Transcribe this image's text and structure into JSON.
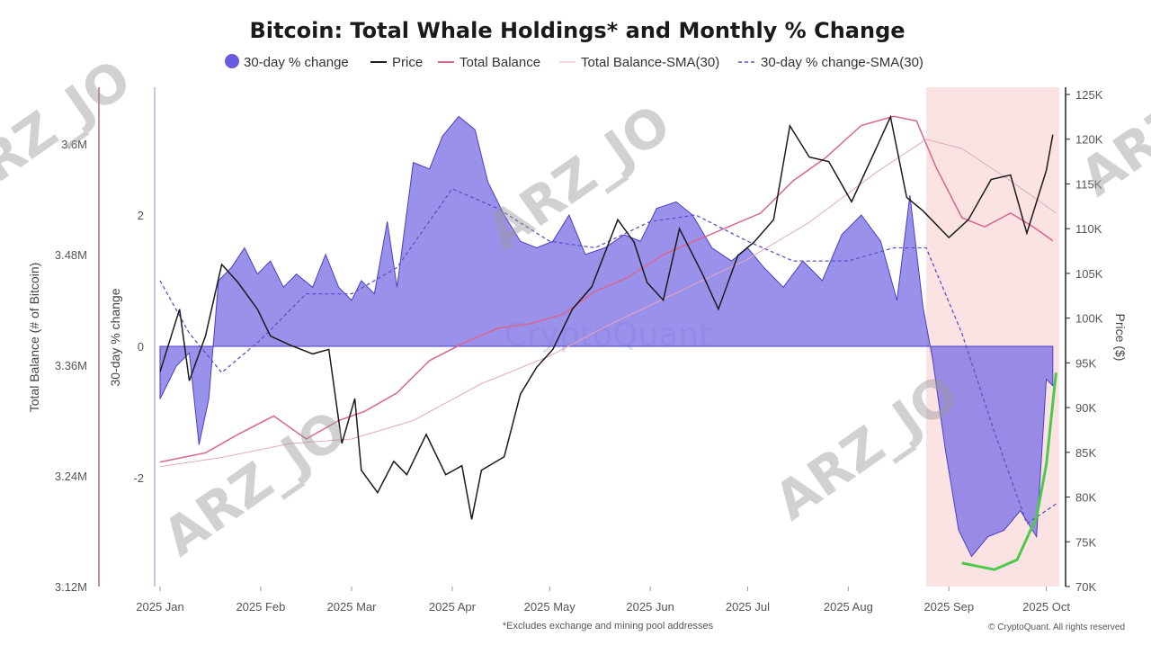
{
  "chart_data": {
    "type": "area",
    "title": "Bitcoin: Total Whale Holdings* and Monthly % Change",
    "note": "*Excludes exchange and mining pool addresses",
    "credit": "© CryptoQuant. All rights reserved",
    "watermark_center": "CryptoQuant",
    "watermark_user": "ARZ_JO",
    "legend": [
      {
        "name": "30-day % change",
        "color": "#6a5ae0",
        "style": "dot"
      },
      {
        "name": "Price",
        "color": "#1a1a1a",
        "style": "line"
      },
      {
        "name": "Total Balance",
        "color": "#d9668f",
        "style": "line"
      },
      {
        "name": "Total Balance-SMA(30)",
        "color": "#e3a9bf",
        "style": "thin"
      },
      {
        "name": "30-day % change-SMA(30)",
        "color": "#5b52c9",
        "style": "dashed"
      }
    ],
    "x_ticks": [
      "2025 Jan",
      "2025 Feb",
      "2025 Mar",
      "2025 Apr",
      "2025 May",
      "2025 Jun",
      "2025 Jul",
      "2025 Aug",
      "2025 Sep",
      "2025 Oct"
    ],
    "axes": {
      "balance": {
        "label": "Total Balance (# of Bitcoin)",
        "ticks": [
          "3.6M",
          "3.48M",
          "3.36M",
          "3.24M",
          "3.12M"
        ],
        "values": [
          3600000,
          3480000,
          3360000,
          3240000,
          3120000
        ]
      },
      "pct": {
        "label": "30-day % change",
        "ticks": [
          "2",
          "0",
          "-2"
        ],
        "values": [
          2,
          0,
          -2
        ]
      },
      "price": {
        "label": "Price ($)",
        "ticks": [
          "125K",
          "120K",
          "115K",
          "110K",
          "105K",
          "100K",
          "95K",
          "90K",
          "85K",
          "80K",
          "75K",
          "70K"
        ],
        "values": [
          125000,
          120000,
          115000,
          110000,
          105000,
          100000,
          95000,
          90000,
          85000,
          80000,
          75000,
          70000
        ]
      }
    },
    "highlight_region": {
      "from": "2025-08-25",
      "to": "2025-10-05",
      "color": "#fbe3e3"
    },
    "series": [
      {
        "name": "30-day % change",
        "unit": "%",
        "points": [
          [
            "2025-01-01",
            -0.8
          ],
          [
            "2025-01-06",
            -0.3
          ],
          [
            "2025-01-10",
            -0.1
          ],
          [
            "2025-01-13",
            -1.5
          ],
          [
            "2025-01-16",
            -0.8
          ],
          [
            "2025-01-19",
            1.0
          ],
          [
            "2025-01-23",
            1.2
          ],
          [
            "2025-01-27",
            1.5
          ],
          [
            "2025-01-31",
            1.1
          ],
          [
            "2025-02-04",
            1.3
          ],
          [
            "2025-02-08",
            0.9
          ],
          [
            "2025-02-12",
            1.1
          ],
          [
            "2025-02-17",
            0.9
          ],
          [
            "2025-02-21",
            1.4
          ],
          [
            "2025-02-25",
            0.9
          ],
          [
            "2025-03-01",
            0.7
          ],
          [
            "2025-03-04",
            1.0
          ],
          [
            "2025-03-08",
            0.8
          ],
          [
            "2025-03-12",
            1.9
          ],
          [
            "2025-03-15",
            0.9
          ],
          [
            "2025-03-20",
            2.8
          ],
          [
            "2025-03-25",
            2.7
          ],
          [
            "2025-03-29",
            3.2
          ],
          [
            "2025-04-03",
            3.5
          ],
          [
            "2025-04-08",
            3.3
          ],
          [
            "2025-04-12",
            2.5
          ],
          [
            "2025-04-17",
            2.0
          ],
          [
            "2025-04-22",
            1.6
          ],
          [
            "2025-04-27",
            1.5
          ],
          [
            "2025-05-02",
            1.6
          ],
          [
            "2025-05-07",
            2.0
          ],
          [
            "2025-05-12",
            1.4
          ],
          [
            "2025-05-18",
            1.5
          ],
          [
            "2025-05-24",
            1.7
          ],
          [
            "2025-05-29",
            1.6
          ],
          [
            "2025-06-03",
            2.1
          ],
          [
            "2025-06-09",
            2.2
          ],
          [
            "2025-06-14",
            2.0
          ],
          [
            "2025-06-20",
            1.5
          ],
          [
            "2025-06-26",
            1.3
          ],
          [
            "2025-07-01",
            1.5
          ],
          [
            "2025-07-06",
            1.2
          ],
          [
            "2025-07-12",
            0.9
          ],
          [
            "2025-07-18",
            1.3
          ],
          [
            "2025-07-24",
            1.0
          ],
          [
            "2025-07-30",
            1.7
          ],
          [
            "2025-08-05",
            2.0
          ],
          [
            "2025-08-11",
            1.6
          ],
          [
            "2025-08-16",
            0.7
          ],
          [
            "2025-08-20",
            2.3
          ],
          [
            "2025-08-24",
            0.6
          ],
          [
            "2025-08-27",
            -0.2
          ],
          [
            "2025-08-31",
            -1.6
          ],
          [
            "2025-09-04",
            -2.8
          ],
          [
            "2025-09-08",
            -3.2
          ],
          [
            "2025-09-13",
            -2.9
          ],
          [
            "2025-09-18",
            -2.8
          ],
          [
            "2025-09-23",
            -2.5
          ],
          [
            "2025-09-28",
            -2.9
          ],
          [
            "2025-10-01",
            -0.5
          ],
          [
            "2025-10-03",
            -0.6
          ]
        ]
      },
      {
        "name": "30-day % change-SMA(30)",
        "unit": "%",
        "points": [
          [
            "2025-01-01",
            1.0
          ],
          [
            "2025-01-10",
            0.2
          ],
          [
            "2025-01-20",
            -0.4
          ],
          [
            "2025-02-01",
            0.1
          ],
          [
            "2025-02-15",
            0.8
          ],
          [
            "2025-03-01",
            0.8
          ],
          [
            "2025-03-15",
            1.2
          ],
          [
            "2025-04-01",
            2.4
          ],
          [
            "2025-04-15",
            2.1
          ],
          [
            "2025-05-01",
            1.6
          ],
          [
            "2025-05-15",
            1.5
          ],
          [
            "2025-06-01",
            1.9
          ],
          [
            "2025-06-15",
            2.0
          ],
          [
            "2025-07-01",
            1.6
          ],
          [
            "2025-07-15",
            1.3
          ],
          [
            "2025-08-01",
            1.3
          ],
          [
            "2025-08-15",
            1.5
          ],
          [
            "2025-08-25",
            1.5
          ],
          [
            "2025-09-05",
            0.2
          ],
          [
            "2025-09-15",
            -1.3
          ],
          [
            "2025-09-25",
            -2.7
          ],
          [
            "2025-10-04",
            -2.4
          ]
        ]
      },
      {
        "name": "Price",
        "unit": "USD",
        "points": [
          [
            "2025-01-01",
            94000
          ],
          [
            "2025-01-07",
            101000
          ],
          [
            "2025-01-10",
            93000
          ],
          [
            "2025-01-15",
            98000
          ],
          [
            "2025-01-20",
            106000
          ],
          [
            "2025-01-25",
            104000
          ],
          [
            "2025-01-31",
            101000
          ],
          [
            "2025-02-04",
            98000
          ],
          [
            "2025-02-10",
            97000
          ],
          [
            "2025-02-17",
            96000
          ],
          [
            "2025-02-22",
            96500
          ],
          [
            "2025-02-26",
            86000
          ],
          [
            "2025-03-02",
            91000
          ],
          [
            "2025-03-04",
            83000
          ],
          [
            "2025-03-09",
            80500
          ],
          [
            "2025-03-14",
            84000
          ],
          [
            "2025-03-18",
            82500
          ],
          [
            "2025-03-24",
            87000
          ],
          [
            "2025-03-30",
            82500
          ],
          [
            "2025-04-04",
            83500
          ],
          [
            "2025-04-07",
            77500
          ],
          [
            "2025-04-10",
            83000
          ],
          [
            "2025-04-17",
            84500
          ],
          [
            "2025-04-22",
            91500
          ],
          [
            "2025-04-27",
            94500
          ],
          [
            "2025-05-02",
            96500
          ],
          [
            "2025-05-08",
            101000
          ],
          [
            "2025-05-14",
            103500
          ],
          [
            "2025-05-22",
            111000
          ],
          [
            "2025-05-27",
            108500
          ],
          [
            "2025-05-31",
            104000
          ],
          [
            "2025-06-05",
            102000
          ],
          [
            "2025-06-10",
            110000
          ],
          [
            "2025-06-17",
            105000
          ],
          [
            "2025-06-22",
            101000
          ],
          [
            "2025-06-28",
            107000
          ],
          [
            "2025-07-03",
            108500
          ],
          [
            "2025-07-09",
            111000
          ],
          [
            "2025-07-14",
            121500
          ],
          [
            "2025-07-20",
            118000
          ],
          [
            "2025-07-26",
            117500
          ],
          [
            "2025-08-02",
            113000
          ],
          [
            "2025-08-09",
            118500
          ],
          [
            "2025-08-14",
            122500
          ],
          [
            "2025-08-19",
            113500
          ],
          [
            "2025-08-24",
            112000
          ],
          [
            "2025-08-28",
            110500
          ],
          [
            "2025-09-01",
            109000
          ],
          [
            "2025-09-07",
            111000
          ],
          [
            "2025-09-14",
            115500
          ],
          [
            "2025-09-20",
            116000
          ],
          [
            "2025-09-25",
            109500
          ],
          [
            "2025-10-01",
            116500
          ],
          [
            "2025-10-03",
            120500
          ]
        ]
      },
      {
        "name": "Total Balance",
        "unit": "BTC",
        "points": [
          [
            "2025-01-01",
            3255000
          ],
          [
            "2025-01-15",
            3265000
          ],
          [
            "2025-01-25",
            3285000
          ],
          [
            "2025-02-05",
            3305000
          ],
          [
            "2025-02-15",
            3280000
          ],
          [
            "2025-02-25",
            3300000
          ],
          [
            "2025-03-05",
            3310000
          ],
          [
            "2025-03-15",
            3330000
          ],
          [
            "2025-03-25",
            3365000
          ],
          [
            "2025-04-05",
            3385000
          ],
          [
            "2025-04-15",
            3400000
          ],
          [
            "2025-04-25",
            3405000
          ],
          [
            "2025-05-05",
            3415000
          ],
          [
            "2025-05-15",
            3440000
          ],
          [
            "2025-05-25",
            3455000
          ],
          [
            "2025-06-05",
            3480000
          ],
          [
            "2025-06-15",
            3495000
          ],
          [
            "2025-06-25",
            3510000
          ],
          [
            "2025-07-05",
            3525000
          ],
          [
            "2025-07-15",
            3560000
          ],
          [
            "2025-07-25",
            3585000
          ],
          [
            "2025-08-05",
            3620000
          ],
          [
            "2025-08-15",
            3630000
          ],
          [
            "2025-08-22",
            3625000
          ],
          [
            "2025-08-28",
            3575000
          ],
          [
            "2025-09-05",
            3520000
          ],
          [
            "2025-09-12",
            3510000
          ],
          [
            "2025-09-20",
            3525000
          ],
          [
            "2025-09-27",
            3510000
          ],
          [
            "2025-10-03",
            3495000
          ]
        ]
      },
      {
        "name": "Total Balance-SMA(30)",
        "unit": "BTC",
        "points": [
          [
            "2025-01-01",
            3250000
          ],
          [
            "2025-01-20",
            3260000
          ],
          [
            "2025-02-10",
            3275000
          ],
          [
            "2025-03-01",
            3280000
          ],
          [
            "2025-03-20",
            3300000
          ],
          [
            "2025-04-10",
            3340000
          ],
          [
            "2025-05-01",
            3370000
          ],
          [
            "2025-05-20",
            3405000
          ],
          [
            "2025-06-10",
            3440000
          ],
          [
            "2025-07-01",
            3475000
          ],
          [
            "2025-07-20",
            3515000
          ],
          [
            "2025-08-10",
            3570000
          ],
          [
            "2025-08-25",
            3605000
          ],
          [
            "2025-09-05",
            3595000
          ],
          [
            "2025-09-20",
            3560000
          ],
          [
            "2025-10-04",
            3525000
          ]
        ]
      },
      {
        "name": "trend-curve",
        "unit": "%",
        "points": [
          [
            "2025-09-05",
            -3.3
          ],
          [
            "2025-09-15",
            -3.4
          ],
          [
            "2025-09-22",
            -3.25
          ],
          [
            "2025-09-28",
            -2.6
          ],
          [
            "2025-10-01",
            -1.8
          ],
          [
            "2025-10-04",
            -0.4
          ]
        ]
      }
    ]
  }
}
